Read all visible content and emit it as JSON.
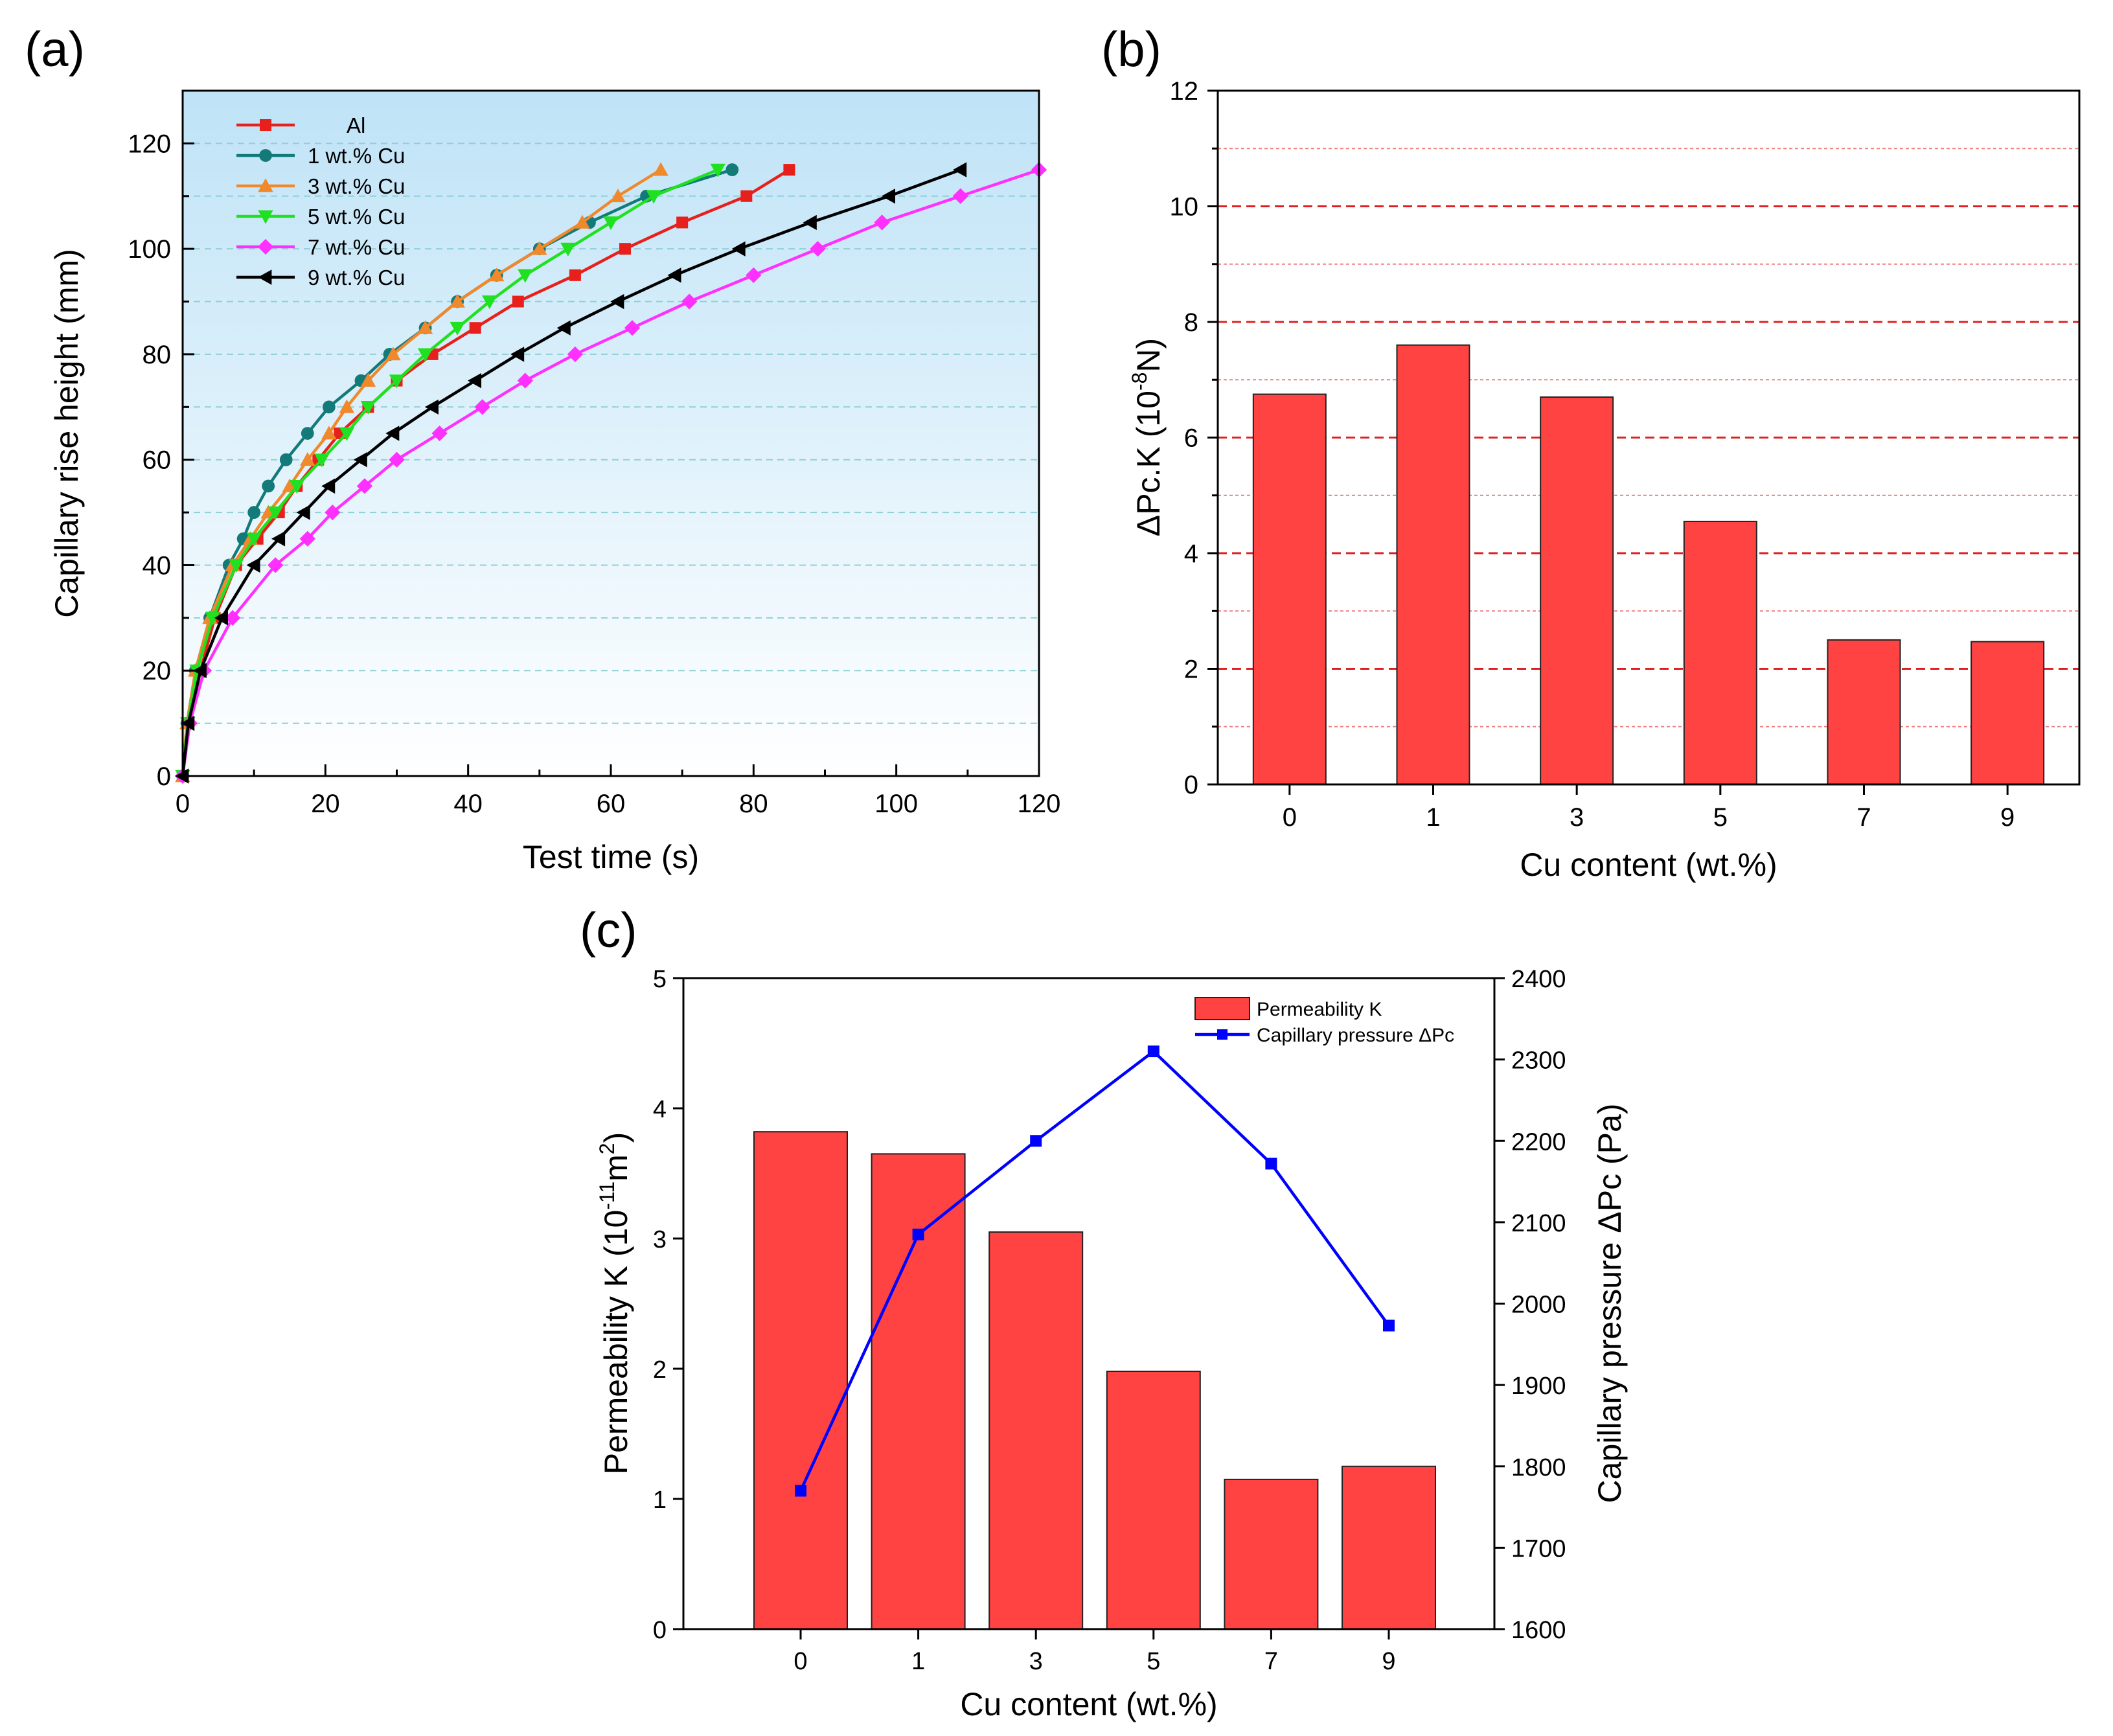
{
  "chart_data": [
    {
      "panel": "(a)",
      "type": "line",
      "title": "",
      "xlabel": "Test time (s)",
      "ylabel": "Capillary rise height (mm)",
      "xlim": [
        0,
        120
      ],
      "ylim": [
        0,
        130
      ],
      "xticks": [
        0,
        20,
        40,
        60,
        80,
        100,
        120
      ],
      "yticks": [
        0,
        20,
        40,
        60,
        80,
        100,
        120
      ],
      "legend_position": "top-left",
      "series": [
        {
          "name": "Al",
          "color": "#e8201c",
          "marker": "square",
          "x": [
            0,
            0.8,
            2.5,
            4.5,
            7.5,
            10.5,
            13.5,
            16,
            19,
            22,
            26,
            30,
            35,
            41,
            47,
            55,
            62,
            70,
            79,
            85
          ],
          "y": [
            0,
            10,
            20,
            30,
            40,
            45,
            50,
            55,
            60,
            65,
            70,
            75,
            80,
            85,
            90,
            95,
            100,
            105,
            110,
            115
          ]
        },
        {
          "name": "1 wt.% Cu",
          "color": "#127a78",
          "marker": "circle",
          "x": [
            0,
            0.6,
            1.8,
            3.8,
            6.5,
            8.5,
            10,
            12,
            14.5,
            17.5,
            20.5,
            25,
            29,
            34,
            38.5,
            44,
            50,
            57,
            65,
            77
          ],
          "y": [
            0,
            10,
            20,
            30,
            40,
            45,
            50,
            55,
            60,
            65,
            70,
            75,
            80,
            85,
            90,
            95,
            100,
            105,
            110,
            115
          ]
        },
        {
          "name": "3 wt.% Cu",
          "color": "#f0882c",
          "marker": "triangle-up",
          "x": [
            0,
            0.6,
            1.8,
            3.8,
            7,
            9.5,
            12,
            15,
            17.5,
            20.5,
            23,
            26,
            29.5,
            34,
            38.5,
            44,
            50,
            56,
            61,
            67
          ],
          "y": [
            0,
            10,
            20,
            30,
            40,
            45,
            50,
            55,
            60,
            65,
            70,
            75,
            80,
            85,
            90,
            95,
            100,
            105,
            110,
            115
          ]
        },
        {
          "name": "5 wt.% Cu",
          "color": "#1fe11f",
          "marker": "triangle-down",
          "x": [
            0,
            0.7,
            2,
            4.2,
            7.5,
            10,
            13,
            16,
            19.5,
            23,
            26,
            30,
            34,
            38.5,
            43,
            48,
            54,
            60,
            66,
            75
          ],
          "y": [
            0,
            10,
            20,
            30,
            40,
            45,
            50,
            55,
            60,
            65,
            70,
            75,
            80,
            85,
            90,
            95,
            100,
            105,
            110,
            115
          ]
        },
        {
          "name": "7 wt.% Cu",
          "color": "#ff30ff",
          "marker": "diamond",
          "x": [
            0,
            1,
            3,
            7,
            13,
            17.5,
            21,
            25.5,
            30,
            36,
            42,
            48,
            55,
            63,
            71,
            80,
            89,
            98,
            109,
            120
          ],
          "y": [
            0,
            10,
            20,
            30,
            40,
            45,
            50,
            55,
            60,
            65,
            70,
            75,
            80,
            85,
            90,
            95,
            100,
            105,
            110,
            115
          ]
        },
        {
          "name": "9 wt.% Cu",
          "color": "#000000",
          "marker": "triangle-left",
          "x": [
            0,
            0.8,
            2.5,
            5.5,
            10,
            13.5,
            17,
            20.5,
            25,
            29.5,
            35,
            41,
            47,
            53.5,
            61,
            69,
            78,
            88,
            99,
            109
          ],
          "y": [
            0,
            10,
            20,
            30,
            40,
            45,
            50,
            55,
            60,
            65,
            70,
            75,
            80,
            85,
            90,
            95,
            100,
            105,
            110,
            115
          ]
        }
      ]
    },
    {
      "panel": "(b)",
      "type": "bar",
      "title": "",
      "xlabel": "Cu content (wt.%)",
      "ylabel_base": "ΔPc.K (10",
      "ylabel_exp": "-8",
      "ylabel_unit": "N)",
      "categories": [
        "0",
        "1",
        "3",
        "5",
        "7",
        "9"
      ],
      "values": [
        6.75,
        7.6,
        6.7,
        4.55,
        2.5,
        2.47
      ],
      "ylim": [
        0,
        12
      ],
      "yticks": [
        0,
        2,
        4,
        6,
        8,
        10,
        12
      ],
      "grid": "dashed horizontal, major and minor",
      "bar_color": "#ff4242"
    },
    {
      "panel": "(c)",
      "type": "bar",
      "title": "",
      "xlabel": "Cu content (wt.%)",
      "categories": [
        "0",
        "1",
        "3",
        "5",
        "7",
        "9"
      ],
      "ylabel_left_base": "Permeability K (10",
      "ylabel_left_exp": "-11",
      "ylabel_left_unit": "m",
      "ylabel_left_exp2": "2",
      "ylabel_left_close": ")",
      "ylabel_right": "Capillary pressure ΔPc (Pa)",
      "ylim_left": [
        0,
        5
      ],
      "yticks_left": [
        0,
        1,
        2,
        3,
        4,
        5
      ],
      "ylim_right": [
        1600,
        2400
      ],
      "yticks_right": [
        1600,
        1700,
        1800,
        1900,
        2000,
        2100,
        2200,
        2300,
        2400
      ],
      "legend_position": "top-right",
      "series": [
        {
          "name": "Permeability K",
          "type": "bar",
          "axis": "left",
          "color": "#ff4242",
          "values": [
            3.82,
            3.65,
            3.05,
            1.98,
            1.15,
            1.25
          ]
        },
        {
          "name": "Capillary pressure ΔPc",
          "type": "line",
          "axis": "right",
          "color": "#0000ff",
          "marker": "square",
          "values": [
            1770,
            2085,
            2200,
            2310,
            2172,
            1973
          ]
        }
      ]
    }
  ]
}
